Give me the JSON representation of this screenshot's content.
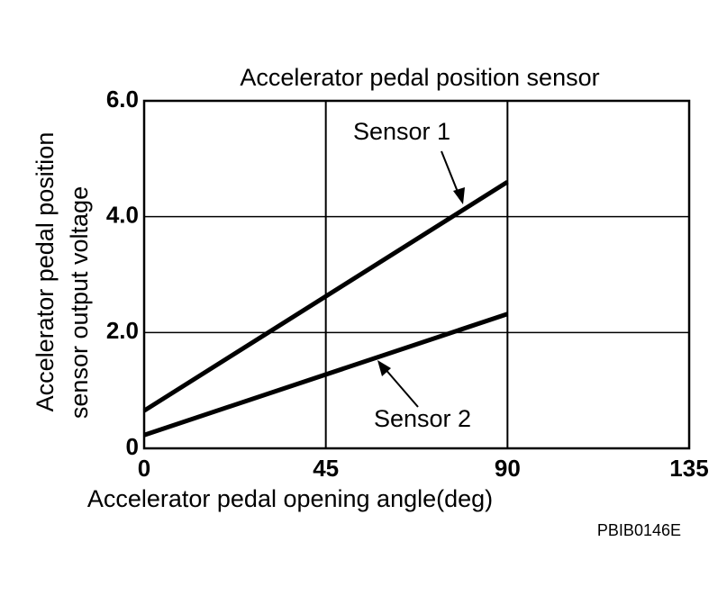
{
  "chart_data": {
    "type": "line",
    "title": "Accelerator pedal position sensor",
    "x_label": "Accelerator pedal opening angle(deg)",
    "y_label_lines": [
      "Accelerator pedal position",
      "sensor output voltage"
    ],
    "x": [
      0,
      90
    ],
    "series": [
      {
        "name": "Sensor 1",
        "color": "#000000",
        "values": [
          0.65,
          4.6
        ]
      },
      {
        "name": "Sensor 2",
        "color": "#000000",
        "values": [
          0.23,
          2.32
        ]
      }
    ],
    "xlim": [
      0,
      135
    ],
    "xticks": [
      0,
      45,
      90,
      135
    ],
    "ylim": [
      0,
      6
    ],
    "yticks": [
      0,
      {
        "value": 2,
        "label": "2.0"
      },
      {
        "value": 4,
        "label": "4.0"
      },
      {
        "value": 6,
        "label": "6.0"
      }
    ],
    "grid": true,
    "code": "PBIB0146E"
  }
}
